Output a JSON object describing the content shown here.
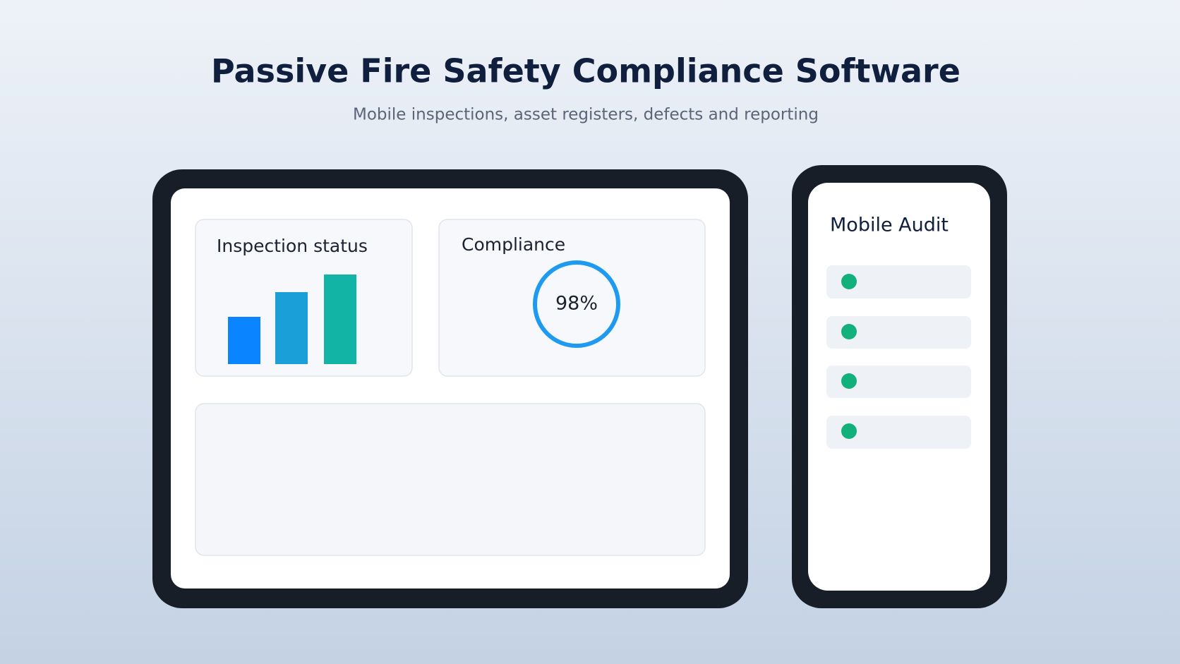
{
  "header": {
    "title": "Passive Fire Safety Compliance Software",
    "subtitle": "Mobile inspections, asset registers, defects and reporting"
  },
  "tablet": {
    "inspection_card": {
      "title": "Inspection status"
    },
    "compliance_card": {
      "title": "Compliance",
      "value": "98%"
    }
  },
  "phone": {
    "title": "Mobile Audit"
  }
}
